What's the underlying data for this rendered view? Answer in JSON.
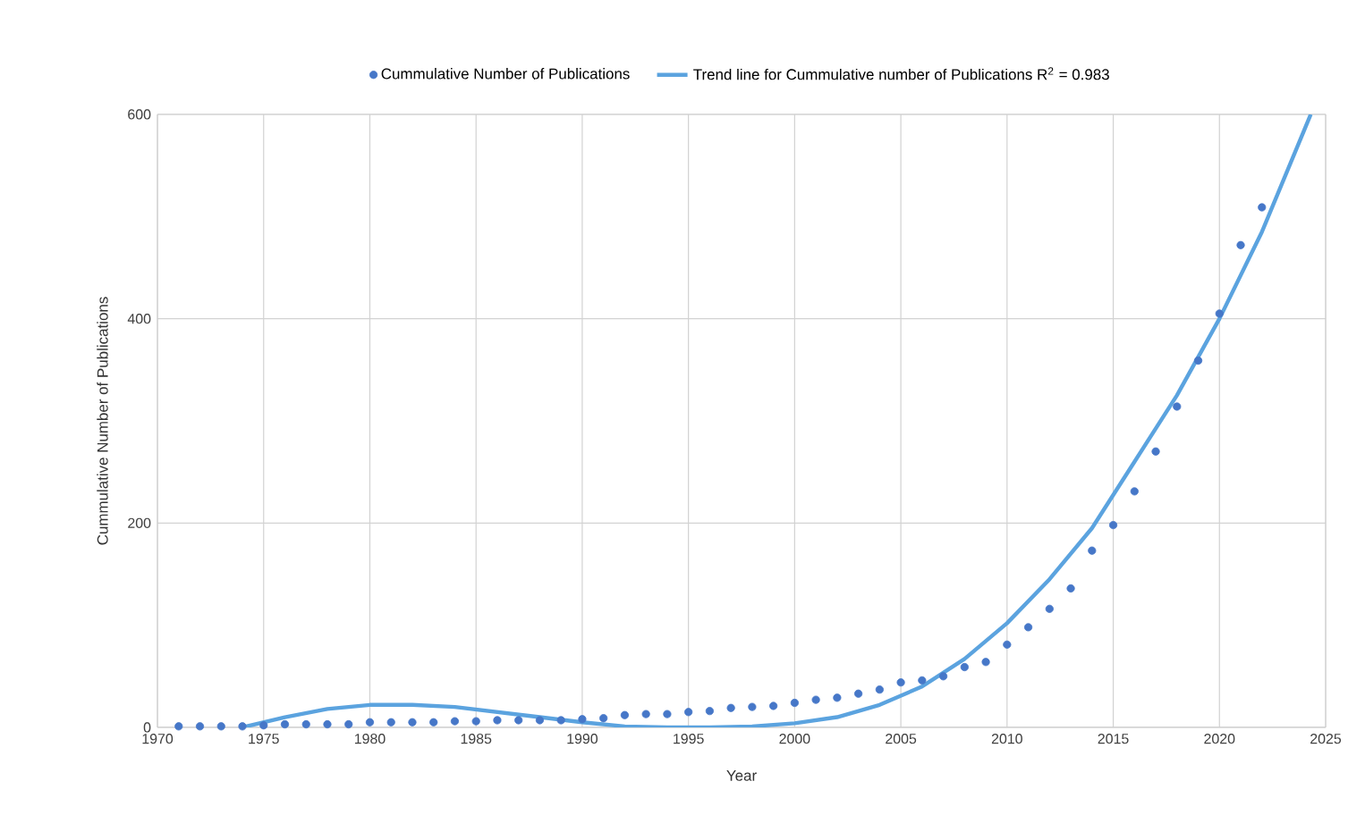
{
  "chart_data": {
    "type": "scatter",
    "xlabel": "Year",
    "ylabel": "Cummulative Number of Publications",
    "xlim": [
      1970,
      2025
    ],
    "ylim": [
      0,
      600
    ],
    "xticks": [
      1970,
      1975,
      1980,
      1985,
      1990,
      1995,
      2000,
      2005,
      2010,
      2015,
      2020,
      2025
    ],
    "yticks": [
      0,
      200,
      400,
      600
    ],
    "grid": true,
    "legend": "top",
    "series": [
      {
        "name": "Cummulative Number of Publications",
        "marker": "circle",
        "color": "#4677c8",
        "x": [
          1971,
          1972,
          1973,
          1974,
          1975,
          1976,
          1977,
          1978,
          1979,
          1980,
          1981,
          1982,
          1983,
          1984,
          1985,
          1986,
          1987,
          1988,
          1989,
          1990,
          1991,
          1992,
          1993,
          1994,
          1995,
          1996,
          1997,
          1998,
          1999,
          2000,
          2001,
          2002,
          2003,
          2004,
          2005,
          2006,
          2007,
          2008,
          2009,
          2010,
          2011,
          2012,
          2013,
          2014,
          2015,
          2016,
          2017,
          2018,
          2019,
          2020,
          2021,
          2022
        ],
        "values": [
          1,
          1,
          1,
          1,
          2,
          3,
          3,
          3,
          3,
          5,
          5,
          5,
          5,
          6,
          6,
          7,
          7,
          7,
          7,
          8,
          9,
          12,
          13,
          13,
          15,
          16,
          19,
          20,
          21,
          24,
          27,
          29,
          33,
          37,
          44,
          46,
          50,
          59,
          64,
          81,
          98,
          116,
          136,
          173,
          198,
          231,
          270,
          314,
          359,
          405,
          472,
          509
        ]
      },
      {
        "name": "Trend line for Cummulative number of Publications R$^{2}$ = 0.983",
        "type": "line",
        "marker": "none",
        "color": "#5ba3df",
        "x": [
          1974,
          1976,
          1978,
          1980,
          1982,
          1984,
          1986,
          1988,
          1990,
          1992,
          1994,
          1996,
          1998,
          2000,
          2002,
          2004,
          2006,
          2008,
          2010,
          2012,
          2014,
          2016,
          2018,
          2020,
          2022,
          2024,
          2024.3
        ],
        "values": [
          0,
          10,
          18,
          22,
          22,
          20,
          15,
          10,
          5,
          1,
          0,
          0,
          1,
          4,
          10,
          22,
          40,
          67,
          102,
          145,
          195,
          260,
          325,
          400,
          485,
          585,
          600
        ]
      }
    ]
  }
}
